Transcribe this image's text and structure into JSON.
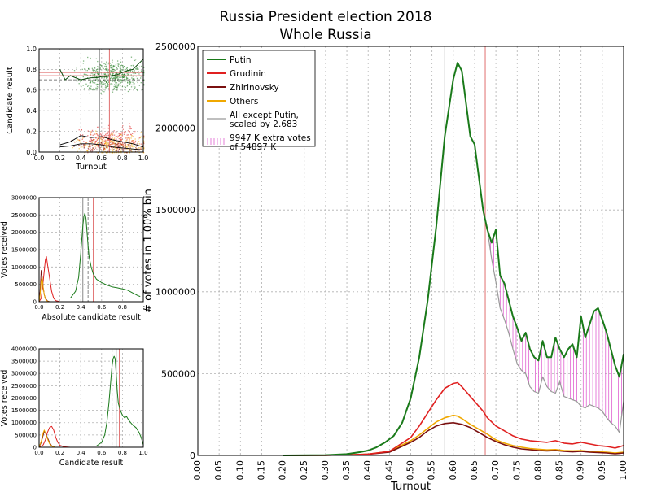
{
  "title": {
    "line1": "Russia President election 2018",
    "line2": "Whole Russia"
  },
  "colors": {
    "putin": "#1a7a1a",
    "grudinin": "#e02020",
    "zhirinovsky": "#7a1010",
    "others": "#f0a800",
    "all_except": "#999999",
    "extra": "#e060d0",
    "vline_gray": "#888888",
    "vline_red": "#e07070"
  },
  "chart_data": [
    {
      "id": "main",
      "type": "line",
      "xlabel": "Turnout",
      "ylabel": "# of votes in 1.00% bin",
      "xlim": [
        0,
        1
      ],
      "ylim": [
        0,
        2500000
      ],
      "grid": true,
      "x_ticks": [
        "0.00",
        "0.05",
        "0.10",
        "0.15",
        "0.20",
        "0.25",
        "0.30",
        "0.35",
        "0.40",
        "0.45",
        "0.50",
        "0.55",
        "0.60",
        "0.65",
        "0.70",
        "0.75",
        "0.80",
        "0.85",
        "0.90",
        "0.95",
        "1.00"
      ],
      "y_ticks": [
        "0",
        "500000",
        "1000000",
        "1500000",
        "2000000",
        "2500000"
      ],
      "vlines": [
        0.58,
        0.675
      ],
      "legend": {
        "placement": "top-left",
        "entries": [
          {
            "key": "putin",
            "label": "Putin"
          },
          {
            "key": "grudinin",
            "label": "Grudinin"
          },
          {
            "key": "zhirinovsky",
            "label": "Zhirinovsky"
          },
          {
            "key": "others",
            "label": "Others"
          },
          {
            "key": "all_except",
            "label": "All except Putin,",
            "label2": "scaled by 2.683"
          },
          {
            "key": "extra",
            "label": "9947 K extra votes",
            "label2": " of 54897 K"
          }
        ]
      },
      "series": [
        {
          "key": "putin",
          "x": [
            0.2,
            0.3,
            0.35,
            0.38,
            0.4,
            0.42,
            0.44,
            0.46,
            0.48,
            0.5,
            0.52,
            0.54,
            0.56,
            0.58,
            0.6,
            0.61,
            0.62,
            0.63,
            0.64,
            0.65,
            0.66,
            0.67,
            0.68,
            0.69,
            0.7,
            0.71,
            0.72,
            0.73,
            0.74,
            0.75,
            0.76,
            0.77,
            0.78,
            0.79,
            0.8,
            0.81,
            0.82,
            0.83,
            0.84,
            0.85,
            0.86,
            0.87,
            0.88,
            0.89,
            0.9,
            0.91,
            0.92,
            0.93,
            0.94,
            0.95,
            0.96,
            0.97,
            0.98,
            0.99,
            1.0
          ],
          "y": [
            0,
            2000,
            8000,
            20000,
            30000,
            50000,
            80000,
            120000,
            200000,
            350000,
            600000,
            950000,
            1400000,
            1950000,
            2300000,
            2400000,
            2350000,
            2150000,
            1950000,
            1900000,
            1700000,
            1500000,
            1380000,
            1300000,
            1380000,
            1100000,
            1050000,
            950000,
            850000,
            780000,
            700000,
            750000,
            650000,
            600000,
            580000,
            700000,
            600000,
            600000,
            720000,
            650000,
            600000,
            650000,
            680000,
            600000,
            850000,
            720000,
            800000,
            880000,
            900000,
            830000,
            750000,
            650000,
            550000,
            480000,
            620000
          ]
        },
        {
          "key": "grudinin",
          "x": [
            0.2,
            0.3,
            0.35,
            0.4,
            0.45,
            0.5,
            0.52,
            0.54,
            0.56,
            0.58,
            0.6,
            0.61,
            0.62,
            0.63,
            0.64,
            0.65,
            0.66,
            0.67,
            0.68,
            0.7,
            0.72,
            0.74,
            0.76,
            0.78,
            0.8,
            0.82,
            0.84,
            0.86,
            0.88,
            0.9,
            0.92,
            0.94,
            0.96,
            0.98,
            1.0
          ],
          "y": [
            0,
            1000,
            3000,
            8000,
            25000,
            110000,
            180000,
            260000,
            340000,
            410000,
            440000,
            445000,
            420000,
            390000,
            360000,
            330000,
            300000,
            270000,
            230000,
            180000,
            150000,
            120000,
            100000,
            90000,
            85000,
            80000,
            90000,
            75000,
            70000,
            80000,
            70000,
            60000,
            55000,
            45000,
            60000
          ]
        },
        {
          "key": "zhirinovsky",
          "x": [
            0.2,
            0.3,
            0.35,
            0.4,
            0.45,
            0.5,
            0.52,
            0.54,
            0.56,
            0.58,
            0.6,
            0.62,
            0.64,
            0.66,
            0.68,
            0.7,
            0.72,
            0.74,
            0.76,
            0.78,
            0.8,
            0.82,
            0.84,
            0.86,
            0.88,
            0.9,
            0.92,
            0.94,
            0.96,
            0.98,
            1.0
          ],
          "y": [
            0,
            800,
            2500,
            7000,
            20000,
            80000,
            110000,
            150000,
            180000,
            195000,
            200000,
            190000,
            170000,
            140000,
            110000,
            85000,
            65000,
            50000,
            40000,
            35000,
            30000,
            28000,
            30000,
            25000,
            22000,
            25000,
            20000,
            18000,
            15000,
            10000,
            15000
          ]
        },
        {
          "key": "others",
          "x": [
            0.2,
            0.3,
            0.35,
            0.4,
            0.45,
            0.5,
            0.52,
            0.54,
            0.56,
            0.58,
            0.6,
            0.61,
            0.62,
            0.64,
            0.66,
            0.68,
            0.7,
            0.72,
            0.74,
            0.76,
            0.78,
            0.8,
            0.82,
            0.84,
            0.86,
            0.88,
            0.9,
            0.92,
            0.94,
            0.96,
            0.98,
            1.0
          ],
          "y": [
            0,
            900,
            3000,
            8000,
            25000,
            90000,
            125000,
            165000,
            205000,
            230000,
            245000,
            240000,
            225000,
            190000,
            160000,
            130000,
            95000,
            75000,
            60000,
            50000,
            42000,
            38000,
            34000,
            36000,
            30000,
            28000,
            30000,
            25000,
            22000,
            20000,
            15000,
            20000
          ]
        },
        {
          "key": "all_except",
          "x": [
            0.68,
            0.69,
            0.7,
            0.71,
            0.72,
            0.73,
            0.74,
            0.75,
            0.76,
            0.77,
            0.78,
            0.79,
            0.8,
            0.81,
            0.82,
            0.83,
            0.84,
            0.85,
            0.86,
            0.87,
            0.88,
            0.89,
            0.9,
            0.91,
            0.92,
            0.93,
            0.94,
            0.95,
            0.96,
            0.97,
            0.98,
            0.99,
            1.0
          ],
          "y": [
            1380000,
            1200000,
            1060000,
            900000,
            830000,
            750000,
            650000,
            560000,
            520000,
            500000,
            420000,
            390000,
            380000,
            480000,
            420000,
            390000,
            380000,
            450000,
            360000,
            350000,
            340000,
            330000,
            300000,
            290000,
            310000,
            300000,
            290000,
            270000,
            230000,
            200000,
            180000,
            140000,
            330000
          ]
        }
      ],
      "extra_fill": {
        "between": [
          "putin",
          "all_except"
        ],
        "x_from": 0.68,
        "x_to": 1.0
      }
    },
    {
      "id": "scatter",
      "type": "scatter",
      "xlabel": "Turnout",
      "ylabel": "Candidate result",
      "xlim": [
        0,
        1
      ],
      "ylim": [
        0,
        1
      ],
      "grid": true,
      "x_ticks": [
        "0.0",
        "0.2",
        "0.4",
        "0.6",
        "0.8",
        "1.0"
      ],
      "y_ticks": [
        "0.0",
        "0.2",
        "0.4",
        "0.6",
        "0.8",
        "1.0"
      ],
      "vlines": [
        0.58,
        0.675
      ],
      "hlines": [
        0.7,
        0.74,
        0.77
      ],
      "putin_trend": {
        "x": [
          0.2,
          0.25,
          0.3,
          0.35,
          0.4,
          0.45,
          0.5,
          0.55,
          0.6,
          0.65,
          0.7,
          0.75,
          0.8,
          0.85,
          0.9,
          0.95,
          1.0
        ],
        "y": [
          0.8,
          0.7,
          0.74,
          0.72,
          0.7,
          0.71,
          0.72,
          0.72,
          0.73,
          0.73,
          0.74,
          0.75,
          0.77,
          0.79,
          0.8,
          0.85,
          0.9
        ]
      },
      "grudinin_trend": {
        "x": [
          0.2,
          0.3,
          0.4,
          0.5,
          0.6,
          0.7,
          0.8,
          0.9,
          1.0
        ],
        "y": [
          0.07,
          0.1,
          0.16,
          0.14,
          0.15,
          0.12,
          0.1,
          0.08,
          0.05
        ]
      },
      "zhirinovsky_trend": {
        "x": [
          0.2,
          0.3,
          0.4,
          0.5,
          0.6,
          0.7,
          0.8,
          0.9,
          1.0
        ],
        "y": [
          0.05,
          0.06,
          0.08,
          0.08,
          0.07,
          0.05,
          0.04,
          0.03,
          0.02
        ]
      }
    },
    {
      "id": "absolute",
      "type": "line",
      "xlabel": "Absolute candidate result",
      "ylabel": "Votes received",
      "xlim": [
        0,
        1
      ],
      "ylim": [
        0,
        3000000
      ],
      "grid": true,
      "x_ticks": [
        "0.0",
        "0.2",
        "0.4",
        "0.6",
        "0.8"
      ],
      "y_ticks": [
        "0",
        "500000",
        "1000000",
        "1500000",
        "2000000",
        "2500000",
        "3000000"
      ],
      "vlines": [
        0.42,
        0.47,
        0.52
      ],
      "series": [
        {
          "key": "putin",
          "x": [
            0.3,
            0.35,
            0.38,
            0.4,
            0.42,
            0.43,
            0.44,
            0.45,
            0.46,
            0.47,
            0.48,
            0.5,
            0.52,
            0.55,
            0.6,
            0.65,
            0.7,
            0.75,
            0.8,
            0.85,
            0.9,
            0.95,
            0.97
          ],
          "y": [
            100000,
            300000,
            700000,
            1400000,
            2200000,
            2450000,
            2550000,
            2400000,
            2000000,
            1600000,
            1300000,
            1000000,
            800000,
            650000,
            550000,
            480000,
            430000,
            400000,
            370000,
            330000,
            250000,
            170000,
            150000
          ]
        },
        {
          "key": "grudinin",
          "x": [
            0.0,
            0.02,
            0.04,
            0.06,
            0.07,
            0.08,
            0.1,
            0.12,
            0.14,
            0.16,
            0.2
          ],
          "y": [
            0,
            100000,
            600000,
            1200000,
            1300000,
            1100000,
            700000,
            300000,
            100000,
            30000,
            0
          ]
        },
        {
          "key": "zhirinovsky",
          "x": [
            0.0,
            0.01,
            0.02,
            0.03,
            0.04,
            0.05,
            0.06,
            0.08,
            0.1
          ],
          "y": [
            0,
            300000,
            900000,
            700000,
            400000,
            200000,
            100000,
            20000,
            0
          ]
        },
        {
          "key": "others",
          "x": [
            0.0,
            0.01,
            0.02,
            0.03,
            0.04,
            0.05,
            0.06,
            0.08,
            0.1
          ],
          "y": [
            0,
            200000,
            600000,
            700000,
            400000,
            200000,
            80000,
            10000,
            0
          ]
        }
      ]
    },
    {
      "id": "relative",
      "type": "line",
      "xlabel": "Candidate result",
      "ylabel": "Votes received",
      "xlim": [
        0,
        1
      ],
      "ylim": [
        0,
        4000000
      ],
      "grid": true,
      "x_ticks": [
        "0.0",
        "0.2",
        "0.4",
        "0.6",
        "0.8",
        "1.0"
      ],
      "y_ticks": [
        "0",
        "500000",
        "1000000",
        "1500000",
        "2000000",
        "2500000",
        "3000000",
        "3500000",
        "4000000"
      ],
      "vlines": [
        0.7,
        0.74,
        0.77
      ],
      "series": [
        {
          "key": "putin",
          "x": [
            0.55,
            0.6,
            0.63,
            0.65,
            0.67,
            0.69,
            0.7,
            0.71,
            0.72,
            0.73,
            0.74,
            0.75,
            0.76,
            0.78,
            0.8,
            0.82,
            0.84,
            0.86,
            0.88,
            0.9,
            0.93,
            0.96,
            0.98,
            1.0
          ],
          "y": [
            50000,
            200000,
            500000,
            1000000,
            1800000,
            2800000,
            3300000,
            3600000,
            3700000,
            3600000,
            3000000,
            2300000,
            1800000,
            1500000,
            1300000,
            1200000,
            1250000,
            1100000,
            1000000,
            900000,
            800000,
            600000,
            400000,
            100000
          ]
        },
        {
          "key": "grudinin",
          "x": [
            0.0,
            0.04,
            0.06,
            0.08,
            0.1,
            0.12,
            0.14,
            0.16,
            0.18,
            0.2,
            0.24,
            0.3
          ],
          "y": [
            0,
            100000,
            300000,
            600000,
            800000,
            850000,
            700000,
            400000,
            200000,
            80000,
            20000,
            0
          ]
        },
        {
          "key": "zhirinovsky",
          "x": [
            0.0,
            0.02,
            0.04,
            0.05,
            0.06,
            0.08,
            0.1,
            0.12,
            0.15
          ],
          "y": [
            0,
            200000,
            500000,
            650000,
            600000,
            400000,
            200000,
            60000,
            0
          ]
        },
        {
          "key": "others",
          "x": [
            0.0,
            0.02,
            0.04,
            0.05,
            0.06,
            0.08,
            0.1,
            0.12,
            0.15
          ],
          "y": [
            0,
            250000,
            600000,
            700000,
            600000,
            350000,
            150000,
            50000,
            0
          ]
        }
      ]
    }
  ]
}
